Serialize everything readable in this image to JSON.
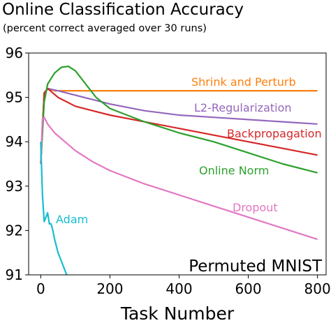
{
  "chart_data": {
    "type": "line",
    "title": "Online Classification Accuracy",
    "subtitle": "(percent correct averaged over 30 runs)",
    "xlabel": "Task Number",
    "ylabel": "",
    "xlim": [
      -35,
      825
    ],
    "ylim": [
      91,
      96
    ],
    "xticks": [
      0,
      200,
      400,
      600,
      800
    ],
    "yticks": [
      91,
      92,
      93,
      94,
      95,
      96
    ],
    "grid": false,
    "legend": "none",
    "annotation": "Permuted MNIST",
    "series": [
      {
        "name": "Shrink and Perturb",
        "color": "#ff7f0e",
        "x": [
          0,
          10,
          20,
          40,
          100,
          200,
          300,
          400,
          500,
          600,
          700,
          800
        ],
        "y": [
          93.5,
          95.1,
          95.2,
          95.15,
          95.15,
          95.15,
          95.15,
          95.15,
          95.15,
          95.15,
          95.15,
          95.15
        ]
      },
      {
        "name": "L2-Regularization",
        "color": "#9467bd",
        "x": [
          0,
          10,
          20,
          50,
          100,
          200,
          300,
          400,
          500,
          600,
          700,
          800
        ],
        "y": [
          93.5,
          95.05,
          95.2,
          95.15,
          95.05,
          94.85,
          94.7,
          94.6,
          94.55,
          94.5,
          94.45,
          94.4
        ]
      },
      {
        "name": "Backpropagation",
        "color": "#d62728",
        "x": [
          0,
          10,
          20,
          50,
          100,
          150,
          200,
          300,
          400,
          500,
          600,
          700,
          800
        ],
        "y": [
          93.5,
          95.1,
          95.2,
          95.0,
          94.8,
          94.7,
          94.6,
          94.45,
          94.3,
          94.15,
          94.0,
          93.85,
          93.7
        ]
      },
      {
        "name": "Online Norm",
        "color": "#2ca02c",
        "x": [
          0,
          10,
          20,
          40,
          60,
          80,
          100,
          130,
          160,
          200,
          300,
          400,
          500,
          600,
          700,
          800
        ],
        "y": [
          93.5,
          94.9,
          95.3,
          95.55,
          95.68,
          95.7,
          95.6,
          95.3,
          95.0,
          94.75,
          94.45,
          94.2,
          94.0,
          93.75,
          93.5,
          93.3
        ]
      },
      {
        "name": "Dropout",
        "color": "#e377c2",
        "x": [
          0,
          5,
          10,
          20,
          40,
          70,
          100,
          150,
          200,
          300,
          400,
          500,
          600,
          700,
          800
        ],
        "y": [
          93.5,
          94.5,
          94.55,
          94.4,
          94.2,
          94.0,
          93.8,
          93.55,
          93.35,
          93.05,
          92.8,
          92.55,
          92.3,
          92.05,
          91.8
        ]
      },
      {
        "name": "Adam",
        "color": "#17becf",
        "x": [
          0,
          5,
          10,
          15,
          20,
          25,
          30,
          35,
          40,
          50,
          60,
          70,
          75
        ],
        "y": [
          94.0,
          92.8,
          92.2,
          92.3,
          92.4,
          92.15,
          92.15,
          92.0,
          91.8,
          91.5,
          91.3,
          91.1,
          91.0
        ]
      }
    ]
  }
}
